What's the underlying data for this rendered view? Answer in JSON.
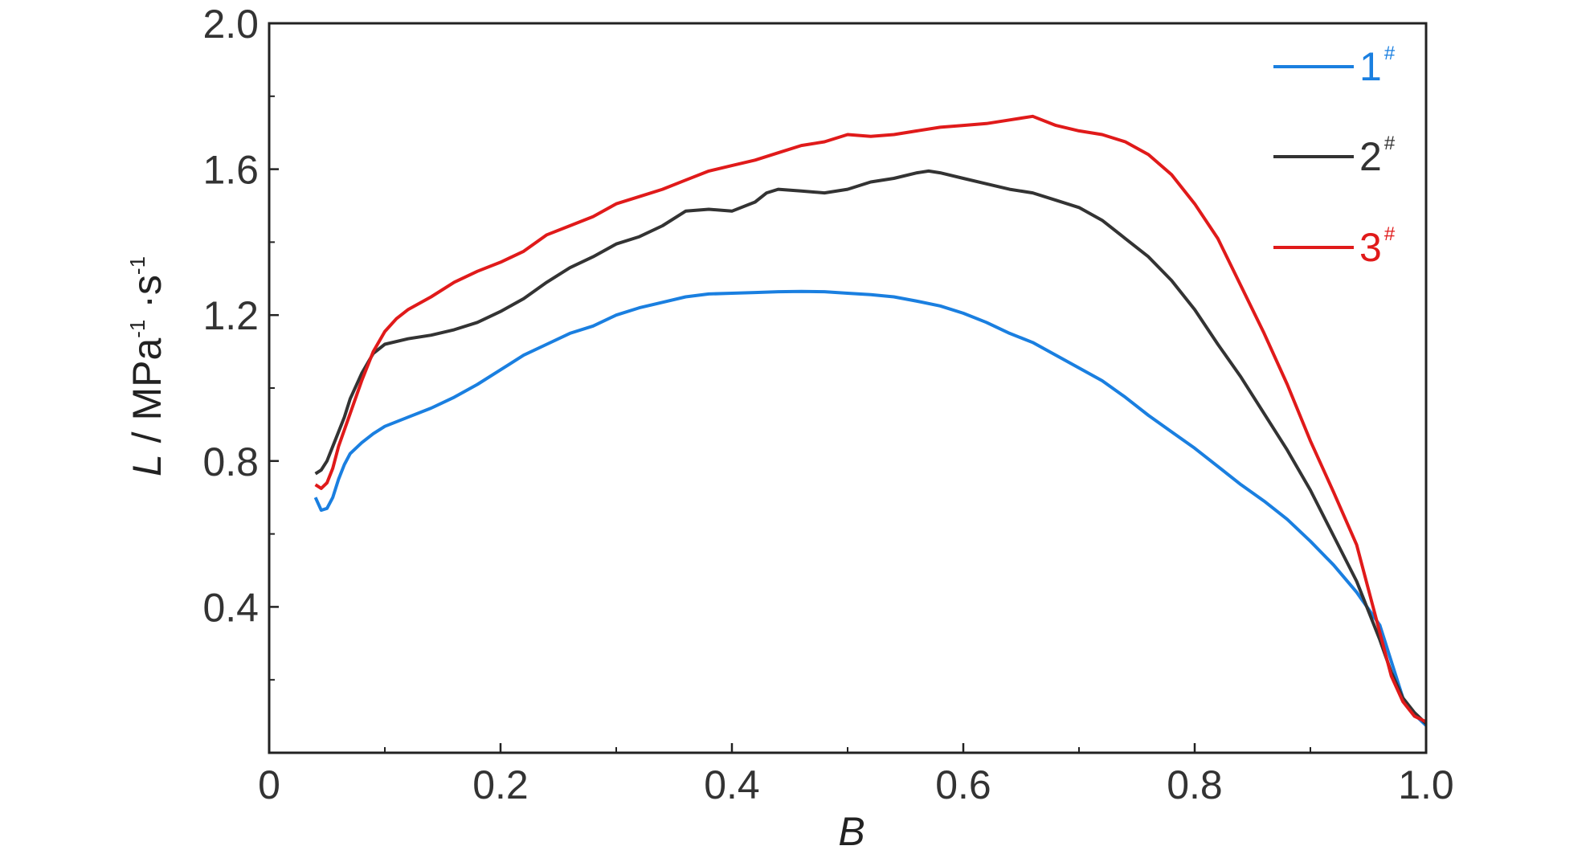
{
  "chart_data": {
    "type": "line",
    "xlabel": "B",
    "ylabel": {
      "var": "L",
      "sep": " / ",
      "unit1": "MPa",
      "exp1": "-1",
      "dot": " ·",
      "unit2": "s",
      "exp2": "-1"
    },
    "xlim": [
      0,
      1.0
    ],
    "ylim": [
      0,
      2.0
    ],
    "x_ticks": [
      {
        "value": 0,
        "label": "0"
      },
      {
        "value": 0.2,
        "label": "0.2"
      },
      {
        "value": 0.4,
        "label": "0.4"
      },
      {
        "value": 0.6,
        "label": "0.6"
      },
      {
        "value": 0.8,
        "label": "0.8"
      },
      {
        "value": 1.0,
        "label": "1.0"
      }
    ],
    "y_ticks": [
      {
        "value": 0.4,
        "label": "0.4"
      },
      {
        "value": 0.8,
        "label": "0.8"
      },
      {
        "value": 1.2,
        "label": "1.2"
      },
      {
        "value": 1.6,
        "label": "1.6"
      },
      {
        "value": 2.0,
        "label": "2.0"
      }
    ],
    "x_minor_ticks": [
      0.1,
      0.3,
      0.5,
      0.7,
      0.9
    ],
    "y_minor_ticks": [
      0.2,
      0.6,
      1.0,
      1.4,
      1.8
    ],
    "grid": false,
    "legend_position": "top-right",
    "series": [
      {
        "name": "1",
        "sup": "#",
        "color": "#1a7fe0",
        "points": [
          [
            0.04,
            0.7
          ],
          [
            0.045,
            0.665
          ],
          [
            0.05,
            0.67
          ],
          [
            0.055,
            0.7
          ],
          [
            0.06,
            0.75
          ],
          [
            0.065,
            0.79
          ],
          [
            0.07,
            0.82
          ],
          [
            0.08,
            0.85
          ],
          [
            0.09,
            0.875
          ],
          [
            0.1,
            0.895
          ],
          [
            0.12,
            0.92
          ],
          [
            0.14,
            0.945
          ],
          [
            0.16,
            0.975
          ],
          [
            0.18,
            1.01
          ],
          [
            0.2,
            1.05
          ],
          [
            0.22,
            1.09
          ],
          [
            0.24,
            1.12
          ],
          [
            0.26,
            1.15
          ],
          [
            0.28,
            1.17
          ],
          [
            0.3,
            1.2
          ],
          [
            0.32,
            1.22
          ],
          [
            0.34,
            1.235
          ],
          [
            0.36,
            1.25
          ],
          [
            0.38,
            1.258
          ],
          [
            0.4,
            1.26
          ],
          [
            0.42,
            1.262
          ],
          [
            0.44,
            1.264
          ],
          [
            0.46,
            1.265
          ],
          [
            0.48,
            1.264
          ],
          [
            0.5,
            1.26
          ],
          [
            0.52,
            1.256
          ],
          [
            0.54,
            1.25
          ],
          [
            0.56,
            1.238
          ],
          [
            0.58,
            1.225
          ],
          [
            0.6,
            1.205
          ],
          [
            0.62,
            1.18
          ],
          [
            0.64,
            1.15
          ],
          [
            0.66,
            1.125
          ],
          [
            0.68,
            1.09
          ],
          [
            0.7,
            1.055
          ],
          [
            0.72,
            1.02
          ],
          [
            0.74,
            0.975
          ],
          [
            0.76,
            0.925
          ],
          [
            0.78,
            0.88
          ],
          [
            0.8,
            0.835
          ],
          [
            0.82,
            0.785
          ],
          [
            0.84,
            0.735
          ],
          [
            0.86,
            0.69
          ],
          [
            0.88,
            0.64
          ],
          [
            0.9,
            0.58
          ],
          [
            0.92,
            0.515
          ],
          [
            0.94,
            0.44
          ],
          [
            0.96,
            0.35
          ],
          [
            0.97,
            0.25
          ],
          [
            0.98,
            0.15
          ],
          [
            0.99,
            0.105
          ],
          [
            1.0,
            0.075
          ]
        ]
      },
      {
        "name": "2",
        "sup": "#",
        "color": "#333333",
        "points": [
          [
            0.04,
            0.765
          ],
          [
            0.045,
            0.775
          ],
          [
            0.05,
            0.8
          ],
          [
            0.055,
            0.84
          ],
          [
            0.06,
            0.88
          ],
          [
            0.065,
            0.92
          ],
          [
            0.07,
            0.97
          ],
          [
            0.08,
            1.04
          ],
          [
            0.09,
            1.095
          ],
          [
            0.1,
            1.12
          ],
          [
            0.12,
            1.135
          ],
          [
            0.14,
            1.145
          ],
          [
            0.16,
            1.16
          ],
          [
            0.18,
            1.18
          ],
          [
            0.2,
            1.21
          ],
          [
            0.22,
            1.245
          ],
          [
            0.24,
            1.29
          ],
          [
            0.26,
            1.33
          ],
          [
            0.28,
            1.36
          ],
          [
            0.3,
            1.395
          ],
          [
            0.32,
            1.415
          ],
          [
            0.34,
            1.445
          ],
          [
            0.36,
            1.485
          ],
          [
            0.38,
            1.49
          ],
          [
            0.4,
            1.485
          ],
          [
            0.42,
            1.51
          ],
          [
            0.43,
            1.535
          ],
          [
            0.44,
            1.545
          ],
          [
            0.46,
            1.54
          ],
          [
            0.48,
            1.535
          ],
          [
            0.5,
            1.545
          ],
          [
            0.52,
            1.565
          ],
          [
            0.54,
            1.575
          ],
          [
            0.56,
            1.59
          ],
          [
            0.57,
            1.595
          ],
          [
            0.58,
            1.59
          ],
          [
            0.6,
            1.575
          ],
          [
            0.62,
            1.56
          ],
          [
            0.64,
            1.545
          ],
          [
            0.66,
            1.535
          ],
          [
            0.68,
            1.515
          ],
          [
            0.7,
            1.495
          ],
          [
            0.72,
            1.46
          ],
          [
            0.74,
            1.41
          ],
          [
            0.76,
            1.36
          ],
          [
            0.78,
            1.295
          ],
          [
            0.8,
            1.215
          ],
          [
            0.82,
            1.12
          ],
          [
            0.84,
            1.03
          ],
          [
            0.86,
            0.93
          ],
          [
            0.88,
            0.83
          ],
          [
            0.9,
            0.72
          ],
          [
            0.92,
            0.595
          ],
          [
            0.94,
            0.47
          ],
          [
            0.96,
            0.31
          ],
          [
            0.97,
            0.22
          ],
          [
            0.98,
            0.15
          ],
          [
            0.99,
            0.11
          ],
          [
            1.0,
            0.08
          ]
        ]
      },
      {
        "name": "3",
        "sup": "#",
        "color": "#e01a1a",
        "points": [
          [
            0.04,
            0.735
          ],
          [
            0.045,
            0.725
          ],
          [
            0.05,
            0.74
          ],
          [
            0.055,
            0.78
          ],
          [
            0.06,
            0.84
          ],
          [
            0.07,
            0.93
          ],
          [
            0.08,
            1.02
          ],
          [
            0.09,
            1.1
          ],
          [
            0.1,
            1.155
          ],
          [
            0.11,
            1.19
          ],
          [
            0.12,
            1.215
          ],
          [
            0.14,
            1.25
          ],
          [
            0.16,
            1.29
          ],
          [
            0.18,
            1.32
          ],
          [
            0.2,
            1.345
          ],
          [
            0.22,
            1.375
          ],
          [
            0.24,
            1.42
          ],
          [
            0.26,
            1.445
          ],
          [
            0.28,
            1.47
          ],
          [
            0.3,
            1.505
          ],
          [
            0.32,
            1.525
          ],
          [
            0.34,
            1.545
          ],
          [
            0.36,
            1.57
          ],
          [
            0.38,
            1.595
          ],
          [
            0.4,
            1.61
          ],
          [
            0.42,
            1.625
          ],
          [
            0.44,
            1.645
          ],
          [
            0.46,
            1.665
          ],
          [
            0.48,
            1.675
          ],
          [
            0.5,
            1.695
          ],
          [
            0.52,
            1.69
          ],
          [
            0.54,
            1.695
          ],
          [
            0.56,
            1.705
          ],
          [
            0.58,
            1.715
          ],
          [
            0.6,
            1.72
          ],
          [
            0.62,
            1.725
          ],
          [
            0.64,
            1.735
          ],
          [
            0.66,
            1.745
          ],
          [
            0.68,
            1.72
          ],
          [
            0.7,
            1.705
          ],
          [
            0.72,
            1.695
          ],
          [
            0.74,
            1.675
          ],
          [
            0.76,
            1.64
          ],
          [
            0.78,
            1.585
          ],
          [
            0.8,
            1.505
          ],
          [
            0.82,
            1.41
          ],
          [
            0.84,
            1.28
          ],
          [
            0.86,
            1.15
          ],
          [
            0.88,
            1.01
          ],
          [
            0.9,
            0.855
          ],
          [
            0.92,
            0.715
          ],
          [
            0.94,
            0.57
          ],
          [
            0.95,
            0.45
          ],
          [
            0.96,
            0.33
          ],
          [
            0.97,
            0.21
          ],
          [
            0.98,
            0.14
          ],
          [
            0.99,
            0.1
          ],
          [
            1.0,
            0.085
          ]
        ]
      }
    ]
  }
}
